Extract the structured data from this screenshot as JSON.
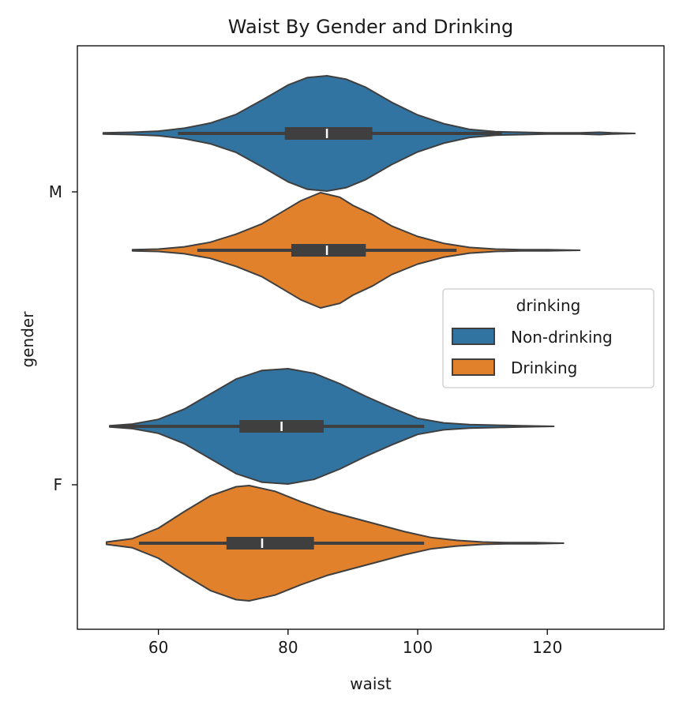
{
  "chart_data": {
    "type": "violin",
    "orientation": "horizontal",
    "title": "Waist By Gender and Drinking",
    "xlabel": "waist",
    "ylabel": "gender",
    "xlim": [
      47.5,
      138
    ],
    "xticks": [
      60,
      80,
      100,
      120
    ],
    "categories": [
      "M",
      "F"
    ],
    "grid": false,
    "legend": {
      "title": "drinking",
      "placement": "center-right",
      "entries": [
        "Non-drinking",
        "Drinking"
      ]
    },
    "series": [
      {
        "name": "Non-drinking",
        "color": "#3274a1",
        "violins": [
          {
            "category": "M",
            "min": 51.5,
            "max": 133.5,
            "q1": 79.5,
            "median": 86.0,
            "q3": 93.0,
            "whisker_low": 63.0,
            "whisker_high": 113.0,
            "density": [
              [
                51.5,
                0.01
              ],
              [
                56,
                0.02
              ],
              [
                60,
                0.04
              ],
              [
                64,
                0.09
              ],
              [
                68,
                0.18
              ],
              [
                72,
                0.33
              ],
              [
                76,
                0.58
              ],
              [
                80,
                0.84
              ],
              [
                83,
                0.97
              ],
              [
                86,
                1.0
              ],
              [
                89,
                0.94
              ],
              [
                92,
                0.8
              ],
              [
                96,
                0.54
              ],
              [
                100,
                0.32
              ],
              [
                104,
                0.17
              ],
              [
                108,
                0.07
              ],
              [
                112,
                0.03
              ],
              [
                116,
                0.02
              ],
              [
                120,
                0.01
              ],
              [
                125,
                0.01
              ],
              [
                128,
                0.02
              ],
              [
                130,
                0.01
              ],
              [
                133.5,
                0.0
              ]
            ]
          },
          {
            "category": "F",
            "min": 52.5,
            "max": 121.0,
            "q1": 72.5,
            "median": 79.0,
            "q3": 85.5,
            "whisker_low": 53.0,
            "whisker_high": 101.0,
            "density": [
              [
                52.5,
                0.01
              ],
              [
                56,
                0.04
              ],
              [
                60,
                0.12
              ],
              [
                64,
                0.3
              ],
              [
                68,
                0.56
              ],
              [
                72,
                0.82
              ],
              [
                76,
                0.97
              ],
              [
                80,
                1.0
              ],
              [
                84,
                0.92
              ],
              [
                88,
                0.74
              ],
              [
                92,
                0.52
              ],
              [
                96,
                0.32
              ],
              [
                100,
                0.14
              ],
              [
                104,
                0.06
              ],
              [
                108,
                0.03
              ],
              [
                112,
                0.02
              ],
              [
                116,
                0.01
              ],
              [
                121,
                0.0
              ]
            ]
          }
        ]
      },
      {
        "name": "Drinking",
        "color": "#e1812c",
        "violins": [
          {
            "category": "M",
            "min": 56.0,
            "max": 125.0,
            "q1": 80.5,
            "median": 86.0,
            "q3": 92.0,
            "whisker_low": 66.0,
            "whisker_high": 106.0,
            "density": [
              [
                56,
                0.01
              ],
              [
                60,
                0.02
              ],
              [
                64,
                0.06
              ],
              [
                68,
                0.14
              ],
              [
                72,
                0.28
              ],
              [
                76,
                0.46
              ],
              [
                79,
                0.66
              ],
              [
                82,
                0.86
              ],
              [
                85,
                1.0
              ],
              [
                88,
                0.92
              ],
              [
                90,
                0.78
              ],
              [
                93,
                0.62
              ],
              [
                96,
                0.42
              ],
              [
                100,
                0.24
              ],
              [
                104,
                0.12
              ],
              [
                108,
                0.05
              ],
              [
                112,
                0.02
              ],
              [
                116,
                0.01
              ],
              [
                120,
                0.01
              ],
              [
                125,
                0.0
              ]
            ]
          },
          {
            "category": "F",
            "min": 52.0,
            "max": 122.5,
            "q1": 70.5,
            "median": 76.0,
            "q3": 84.0,
            "whisker_low": 57.0,
            "whisker_high": 101.0,
            "density": [
              [
                52,
                0.02
              ],
              [
                56,
                0.08
              ],
              [
                60,
                0.26
              ],
              [
                64,
                0.55
              ],
              [
                68,
                0.82
              ],
              [
                72,
                0.98
              ],
              [
                74,
                1.0
              ],
              [
                78,
                0.9
              ],
              [
                82,
                0.72
              ],
              [
                86,
                0.56
              ],
              [
                90,
                0.44
              ],
              [
                94,
                0.32
              ],
              [
                98,
                0.2
              ],
              [
                102,
                0.1
              ],
              [
                106,
                0.05
              ],
              [
                110,
                0.02
              ],
              [
                114,
                0.01
              ],
              [
                118,
                0.01
              ],
              [
                122.5,
                0.0
              ]
            ]
          }
        ]
      }
    ]
  }
}
